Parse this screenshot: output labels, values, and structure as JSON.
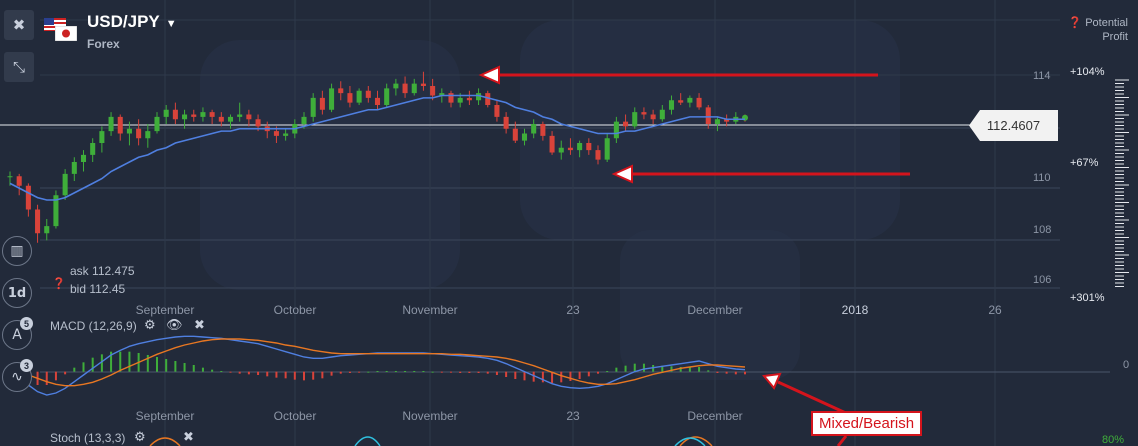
{
  "instrument": {
    "pair": "USD/JPY",
    "category": "Forex"
  },
  "potential_profit": {
    "line1": "Potential",
    "line2": "Profit"
  },
  "current_price": "112.4607",
  "quote": {
    "ask_label": "ask",
    "ask_value": "112.475",
    "bid_label": "bid",
    "bid_value": "112.45"
  },
  "timeframe": "1d",
  "badges": {
    "drawing_tools": "5",
    "indicators": "3"
  },
  "price_axis": [
    "114",
    "110",
    "108",
    "106"
  ],
  "profit_levels": {
    "high": "+104%",
    "mid": "+67%",
    "low": "+301%"
  },
  "time_axis": [
    "September",
    "October",
    "November",
    "23",
    "December",
    "2018",
    "26"
  ],
  "macd": {
    "label": "MACD (12,26,9)",
    "zero_label": "0"
  },
  "stoch": {
    "label": "Stoch (13,3,3)",
    "level_label": "80%"
  },
  "annotation": {
    "text": "Mixed/Bearish"
  },
  "colors": {
    "background": "#222a3a",
    "bull": "#3fae3a",
    "bear": "#d9433a",
    "ma": "#4f7fe0",
    "signal": "#e87722",
    "arrow": "#d4141c"
  },
  "chart_data": {
    "type": "candlestick",
    "ylim": [
      105,
      117
    ],
    "price_ticks": [
      114,
      110,
      108,
      106
    ],
    "current_price": 112.4607,
    "candles": [
      [
        110.0,
        110.2,
        109.6,
        110.0
      ],
      [
        110.0,
        110.1,
        109.2,
        109.6
      ],
      [
        109.6,
        109.7,
        108.3,
        108.6
      ],
      [
        108.6,
        108.8,
        107.2,
        107.6
      ],
      [
        107.6,
        108.2,
        107.3,
        107.9
      ],
      [
        107.9,
        109.4,
        107.8,
        109.2
      ],
      [
        109.2,
        110.3,
        109.0,
        110.1
      ],
      [
        110.1,
        110.8,
        109.8,
        110.6
      ],
      [
        110.6,
        111.1,
        110.2,
        110.9
      ],
      [
        110.9,
        111.6,
        110.6,
        111.4
      ],
      [
        111.4,
        112.1,
        111.0,
        111.9
      ],
      [
        111.9,
        112.7,
        111.7,
        112.5
      ],
      [
        112.5,
        112.6,
        111.5,
        111.8
      ],
      [
        111.8,
        112.3,
        111.3,
        112.0
      ],
      [
        112.0,
        112.4,
        111.3,
        111.6
      ],
      [
        111.6,
        112.2,
        111.2,
        111.9
      ],
      [
        111.9,
        112.7,
        111.8,
        112.5
      ],
      [
        112.5,
        113.0,
        112.2,
        112.8
      ],
      [
        112.8,
        113.1,
        112.2,
        112.4
      ],
      [
        112.4,
        112.8,
        112.0,
        112.6
      ],
      [
        112.6,
        112.8,
        112.3,
        112.5
      ],
      [
        112.5,
        112.9,
        112.3,
        112.7
      ],
      [
        112.7,
        112.8,
        112.2,
        112.5
      ],
      [
        112.5,
        112.7,
        112.1,
        112.3
      ],
      [
        112.3,
        112.6,
        112.0,
        112.5
      ],
      [
        112.5,
        113.1,
        112.3,
        112.6
      ],
      [
        112.6,
        112.8,
        112.1,
        112.4
      ],
      [
        112.4,
        112.6,
        111.9,
        112.1
      ],
      [
        112.1,
        112.3,
        111.6,
        111.9
      ],
      [
        111.9,
        112.1,
        111.4,
        111.7
      ],
      [
        111.7,
        112.0,
        111.5,
        111.8
      ],
      [
        111.8,
        112.4,
        111.6,
        112.2
      ],
      [
        112.2,
        112.7,
        112.0,
        112.5
      ],
      [
        112.5,
        113.5,
        112.3,
        113.3
      ],
      [
        113.3,
        113.6,
        112.6,
        112.8
      ],
      [
        112.8,
        113.9,
        112.7,
        113.7
      ],
      [
        113.7,
        114.0,
        113.2,
        113.5
      ],
      [
        113.5,
        113.8,
        112.9,
        113.1
      ],
      [
        113.1,
        113.7,
        113.0,
        113.6
      ],
      [
        113.6,
        113.8,
        113.1,
        113.3
      ],
      [
        113.3,
        113.6,
        112.8,
        113.0
      ],
      [
        113.0,
        113.9,
        112.9,
        113.7
      ],
      [
        113.7,
        114.1,
        113.4,
        113.9
      ],
      [
        113.9,
        114.2,
        113.3,
        113.5
      ],
      [
        113.5,
        114.1,
        113.4,
        113.9
      ],
      [
        113.9,
        114.4,
        113.6,
        113.8
      ],
      [
        113.8,
        114.1,
        113.2,
        113.4
      ],
      [
        113.4,
        113.7,
        113.1,
        113.5
      ],
      [
        113.5,
        113.6,
        112.9,
        113.1
      ],
      [
        113.1,
        113.5,
        112.9,
        113.3
      ],
      [
        113.3,
        113.6,
        113.0,
        113.2
      ],
      [
        113.2,
        113.7,
        113.0,
        113.5
      ],
      [
        113.5,
        113.6,
        112.9,
        113.0
      ],
      [
        113.0,
        113.2,
        112.3,
        112.5
      ],
      [
        112.5,
        112.7,
        111.8,
        112.0
      ],
      [
        112.0,
        112.3,
        111.4,
        111.5
      ],
      [
        111.5,
        112.0,
        111.3,
        111.8
      ],
      [
        111.8,
        112.4,
        111.6,
        112.2
      ],
      [
        112.2,
        112.3,
        111.5,
        111.7
      ],
      [
        111.7,
        111.9,
        110.9,
        111.0
      ],
      [
        111.0,
        111.5,
        110.7,
        111.2
      ],
      [
        111.2,
        111.6,
        110.9,
        111.1
      ],
      [
        111.1,
        111.5,
        110.8,
        111.4
      ],
      [
        111.4,
        111.6,
        110.9,
        111.1
      ],
      [
        111.1,
        111.3,
        110.5,
        110.7
      ],
      [
        110.7,
        111.8,
        110.6,
        111.6
      ],
      [
        111.6,
        112.5,
        111.4,
        112.3
      ],
      [
        112.3,
        112.6,
        111.9,
        112.1
      ],
      [
        112.1,
        112.9,
        112.0,
        112.7
      ],
      [
        112.7,
        112.9,
        112.4,
        112.6
      ],
      [
        112.6,
        112.8,
        112.2,
        112.4
      ],
      [
        112.4,
        113.0,
        112.3,
        112.8
      ],
      [
        112.8,
        113.4,
        112.6,
        113.2
      ],
      [
        113.2,
        113.5,
        113.0,
        113.1
      ],
      [
        113.1,
        113.4,
        112.9,
        113.3
      ],
      [
        113.3,
        113.5,
        112.8,
        112.9
      ],
      [
        112.9,
        113.0,
        112.0,
        112.2
      ],
      [
        112.2,
        112.5,
        111.9,
        112.4
      ],
      [
        112.4,
        112.6,
        112.1,
        112.3
      ],
      [
        112.3,
        112.7,
        112.2,
        112.5
      ],
      [
        112.5,
        112.6,
        112.3,
        112.46
      ]
    ],
    "ma": [
      109.7,
      109.5,
      109.3,
      109.1,
      109.0,
      109.0,
      109.1,
      109.3,
      109.5,
      109.7,
      109.9,
      110.2,
      110.4,
      110.6,
      110.8,
      110.9,
      111.1,
      111.2,
      111.4,
      111.5,
      111.6,
      111.7,
      111.8,
      111.9,
      111.9,
      112.0,
      112.0,
      112.0,
      112.0,
      112.0,
      112.0,
      112.0,
      112.1,
      112.2,
      112.3,
      112.4,
      112.5,
      112.6,
      112.7,
      112.8,
      112.8,
      112.9,
      113.0,
      113.1,
      113.2,
      113.3,
      113.3,
      113.4,
      113.4,
      113.4,
      113.4,
      113.4,
      113.3,
      113.2,
      113.1,
      112.9,
      112.8,
      112.7,
      112.5,
      112.4,
      112.2,
      112.1,
      112.0,
      111.9,
      111.8,
      111.8,
      111.8,
      111.9,
      111.9,
      112.0,
      112.1,
      112.2,
      112.3,
      112.4,
      112.5,
      112.5,
      112.5,
      112.5,
      112.4,
      112.4,
      112.4
    ],
    "macd": {
      "ylim": [
        -0.5,
        0.7
      ],
      "macd": [
        -0.05,
        -0.1,
        -0.2,
        -0.3,
        -0.35,
        -0.32,
        -0.25,
        -0.15,
        -0.05,
        0.05,
        0.15,
        0.25,
        0.32,
        0.38,
        0.42,
        0.45,
        0.48,
        0.5,
        0.52,
        0.53,
        0.53,
        0.52,
        0.51,
        0.5,
        0.48,
        0.46,
        0.44,
        0.42,
        0.38,
        0.34,
        0.3,
        0.26,
        0.22,
        0.2,
        0.2,
        0.22,
        0.24,
        0.25,
        0.26,
        0.27,
        0.28,
        0.28,
        0.28,
        0.28,
        0.28,
        0.28,
        0.27,
        0.26,
        0.25,
        0.24,
        0.23,
        0.22,
        0.2,
        0.17,
        0.12,
        0.06,
        0.0,
        -0.06,
        -0.12,
        -0.18,
        -0.22,
        -0.24,
        -0.25,
        -0.24,
        -0.22,
        -0.18,
        -0.12,
        -0.06,
        0.0,
        0.04,
        0.06,
        0.08,
        0.1,
        0.12,
        0.14,
        0.16,
        0.12,
        0.08,
        0.06,
        0.04,
        0.03
      ],
      "signal": [
        0.0,
        -0.02,
        -0.05,
        -0.1,
        -0.15,
        -0.19,
        -0.21,
        -0.21,
        -0.19,
        -0.16,
        -0.11,
        -0.05,
        0.02,
        0.08,
        0.14,
        0.2,
        0.26,
        0.31,
        0.36,
        0.4,
        0.43,
        0.46,
        0.48,
        0.49,
        0.49,
        0.49,
        0.48,
        0.47,
        0.45,
        0.43,
        0.4,
        0.38,
        0.35,
        0.32,
        0.3,
        0.28,
        0.27,
        0.27,
        0.27,
        0.27,
        0.27,
        0.27,
        0.27,
        0.27,
        0.27,
        0.27,
        0.27,
        0.27,
        0.26,
        0.26,
        0.25,
        0.24,
        0.23,
        0.22,
        0.2,
        0.17,
        0.13,
        0.09,
        0.04,
        -0.01,
        -0.06,
        -0.1,
        -0.14,
        -0.17,
        -0.19,
        -0.19,
        -0.18,
        -0.15,
        -0.12,
        -0.08,
        -0.04,
        -0.01,
        0.02,
        0.05,
        0.07,
        0.09,
        0.1,
        0.1,
        0.09,
        0.08,
        0.07
      ],
      "zero": 0
    }
  }
}
